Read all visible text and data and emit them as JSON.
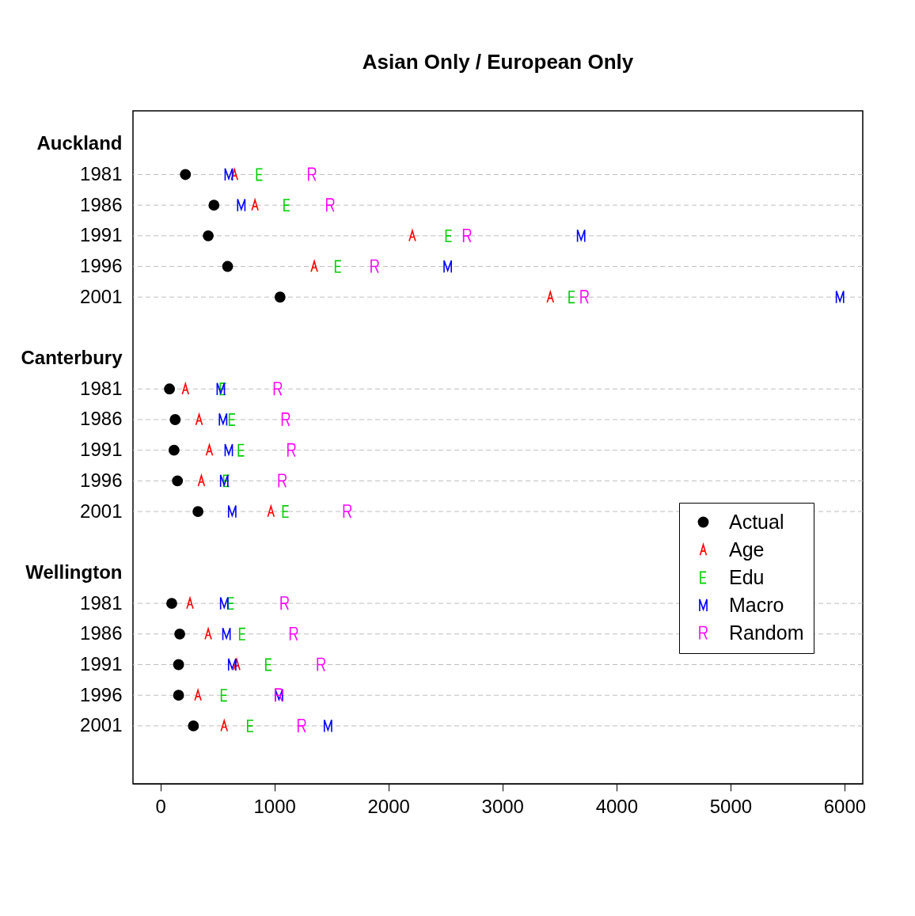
{
  "chart_data": {
    "type": "scatter",
    "orientation": "horizontal",
    "title": "Asian Only / European Only",
    "categories": [
      "Auckland",
      "1981",
      "1986",
      "1991",
      "1996",
      "2001",
      null,
      "Canterbury",
      "1981",
      "1986",
      "1991",
      "1996",
      "2001",
      null,
      "Wellington",
      "1981",
      "1986",
      "1991",
      "1996",
      "2001"
    ],
    "series": [
      {
        "name": "Actual",
        "color": "#000000",
        "marker": "circle",
        "values": [
          null,
          220,
          470,
          420,
          590,
          1050,
          null,
          null,
          80,
          130,
          120,
          150,
          330,
          null,
          null,
          100,
          170,
          160,
          160,
          290
        ]
      },
      {
        "name": "Age",
        "color": "#ff0000",
        "values": [
          null,
          650,
          830,
          2210,
          1350,
          3420,
          null,
          null,
          220,
          340,
          430,
          360,
          970,
          null,
          null,
          260,
          420,
          670,
          330,
          560
        ]
      },
      {
        "name": "Edu",
        "color": "#00cd00",
        "values": [
          null,
          870,
          1110,
          2530,
          1560,
          3610,
          null,
          null,
          550,
          630,
          710,
          580,
          1100,
          null,
          null,
          620,
          720,
          950,
          560,
          790
        ]
      },
      {
        "name": "Macro",
        "color": "#0000ff",
        "values": [
          null,
          600,
          710,
          3690,
          2520,
          5960,
          null,
          null,
          530,
          550,
          600,
          560,
          630,
          null,
          null,
          560,
          580,
          630,
          1040,
          1470
        ]
      },
      {
        "name": "Random",
        "color": "#ff00ff",
        "values": [
          null,
          1330,
          1490,
          2690,
          1880,
          3720,
          null,
          null,
          1030,
          1100,
          1150,
          1070,
          1640,
          null,
          null,
          1090,
          1170,
          1410,
          1040,
          1240
        ]
      }
    ],
    "xlim": [
      -240,
      6160
    ],
    "xticks": [
      0,
      1000,
      2000,
      3000,
      4000,
      5000,
      6000
    ],
    "grid": "y",
    "line_style": "dashed",
    "legend": "bottom right"
  }
}
